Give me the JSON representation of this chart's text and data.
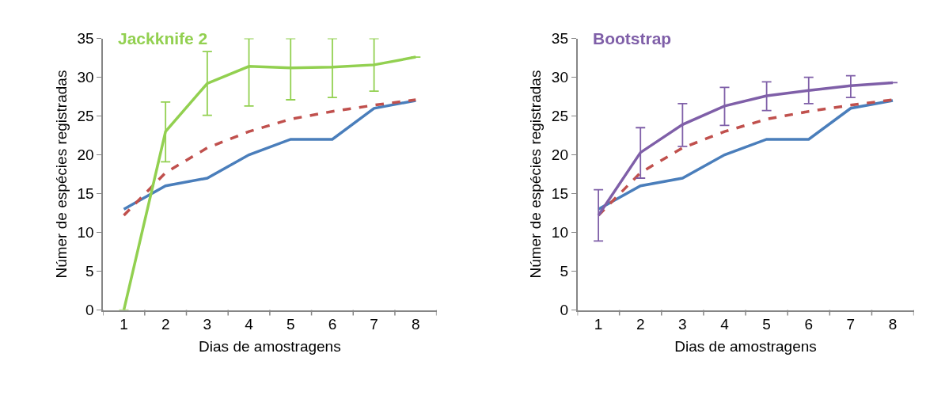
{
  "chart_data": [
    {
      "type": "line",
      "title": "Jackknife 2",
      "xlabel": "Dias de amostragens",
      "ylabel": "Númer de espécies registradas",
      "categories": [
        "1",
        "2",
        "3",
        "4",
        "5",
        "6",
        "7",
        "8"
      ],
      "ylim": [
        0,
        35
      ],
      "yticks": [
        0,
        5,
        10,
        15,
        20,
        25,
        30,
        35
      ],
      "grid": false,
      "marker": "none",
      "series": [
        {
          "color": "#4a7ebb",
          "values": [
            13,
            16,
            17,
            20,
            22,
            22,
            26,
            27
          ]
        },
        {
          "color": "#c0504d",
          "line_style": "dashed",
          "values": [
            12.2,
            17.7,
            20.9,
            23.0,
            24.6,
            25.6,
            26.4,
            27.1
          ]
        },
        {
          "color": "#92d050",
          "values": [
            0,
            23.0,
            29.2,
            31.4,
            31.2,
            31.3,
            31.6,
            32.6
          ],
          "errors": [
            null,
            [
              19.1,
              26.8
            ],
            [
              25.1,
              33.3
            ],
            [
              26.3,
              35
            ],
            [
              27.1,
              35
            ],
            [
              27.4,
              35
            ],
            [
              28.2,
              35
            ],
            null
          ]
        }
      ]
    },
    {
      "type": "line",
      "title": "Bootstrap",
      "xlabel": "Dias de amostragens",
      "ylabel": "Númer de espécies registradas",
      "categories": [
        "1",
        "2",
        "3",
        "4",
        "5",
        "6",
        "7",
        "8"
      ],
      "ylim": [
        0,
        35
      ],
      "yticks": [
        0,
        5,
        10,
        15,
        20,
        25,
        30,
        35
      ],
      "grid": false,
      "marker": "none",
      "series": [
        {
          "color": "#4a7ebb",
          "values": [
            13,
            16,
            17,
            20,
            22,
            22,
            26,
            27
          ]
        },
        {
          "color": "#c0504d",
          "line_style": "dashed",
          "values": [
            12.2,
            17.7,
            20.9,
            23.0,
            24.6,
            25.6,
            26.4,
            27.1
          ]
        },
        {
          "color": "#7f5fa8",
          "values": [
            12.2,
            20.3,
            23.9,
            26.3,
            27.6,
            28.3,
            28.9,
            29.3
          ],
          "errors": [
            [
              8.9,
              15.5
            ],
            [
              17.0,
              23.5
            ],
            [
              21.1,
              26.6
            ],
            [
              23.8,
              28.7
            ],
            [
              25.7,
              29.4
            ],
            [
              26.6,
              30.0
            ],
            [
              27.4,
              30.2
            ],
            null
          ]
        }
      ]
    }
  ]
}
